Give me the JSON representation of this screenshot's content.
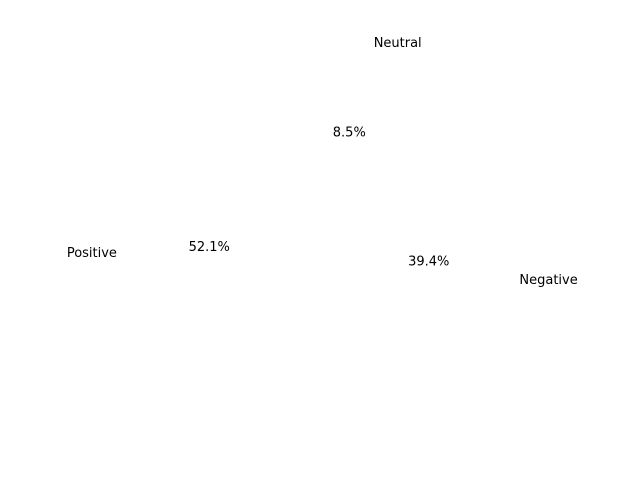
{
  "chart_data": {
    "type": "pie",
    "labels": [
      "Positive",
      "Negative",
      "Neutral"
    ],
    "values": [
      52.1,
      39.4,
      8.5
    ],
    "pct_labels": [
      "52.1%",
      "39.4%",
      "8.5%"
    ],
    "colors": [
      "#ffffff",
      "#ffffff",
      "#ffffff"
    ],
    "start_angle": 90,
    "counterclockwise": true
  }
}
